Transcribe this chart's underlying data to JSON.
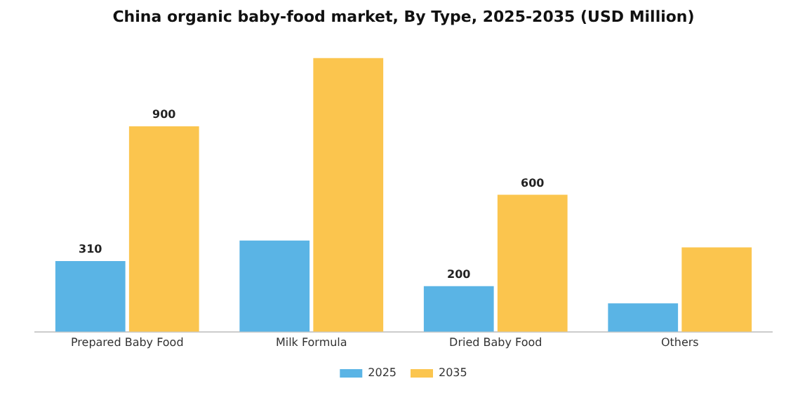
{
  "chart_data": {
    "type": "bar",
    "title": "China organic baby-food market, By Type, 2025-2035 (USD Million)",
    "categories": [
      "Prepared Baby Food",
      "Milk Formula",
      "Dried Baby Food",
      "Others"
    ],
    "series": [
      {
        "name": "2025",
        "color": "#5ab4e5",
        "values": [
          310,
          400,
          200,
          125
        ],
        "value_labels": [
          "310",
          null,
          "200",
          null
        ]
      },
      {
        "name": "2035",
        "color": "#fbc54e",
        "values": [
          900,
          1200,
          600,
          370
        ],
        "value_labels": [
          "900",
          null,
          "600",
          null
        ]
      }
    ],
    "legend": "bottom",
    "grid": false
  }
}
